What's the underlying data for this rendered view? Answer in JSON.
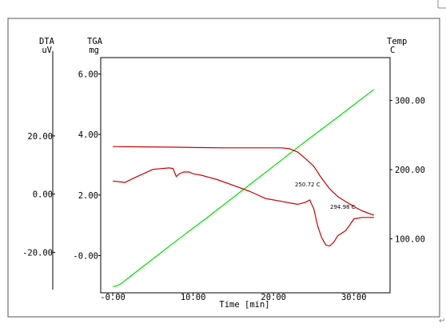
{
  "chart_data": {
    "type": "line",
    "x_axis": {
      "label": "Time [min]",
      "range": [
        -1.5,
        34.5
      ],
      "ticks": [
        {
          "value": 0,
          "label": "-0.00"
        },
        {
          "value": 10,
          "label": "10.00"
        },
        {
          "value": 20,
          "label": "20.00"
        },
        {
          "value": 30,
          "label": "30.00"
        }
      ]
    },
    "left_axes": {
      "dta": {
        "title": "DTA",
        "unit": "uV",
        "range": [
          -33.9,
          46.9
        ],
        "ticks": [
          {
            "value": 20,
            "label": "20.00"
          },
          {
            "value": 0,
            "label": "0.00"
          },
          {
            "value": -20,
            "label": "-20.00"
          }
        ]
      },
      "tga": {
        "title": "TGA",
        "unit": "mg",
        "range": [
          -1.23,
          6.54
        ],
        "ticks": [
          {
            "value": 6,
            "label": "6.00"
          },
          {
            "value": 4,
            "label": "4.00"
          },
          {
            "value": 2,
            "label": "2.00"
          },
          {
            "value": 0,
            "label": "-0.00"
          }
        ]
      }
    },
    "right_axis": {
      "title": "Temp",
      "unit": "C",
      "range": [
        22,
        362
      ],
      "ticks": [
        {
          "value": 300,
          "label": "300.00"
        },
        {
          "value": 200,
          "label": "200.00"
        },
        {
          "value": 100,
          "label": "100.00"
        }
      ]
    },
    "series": [
      {
        "axis": "temp",
        "color": "#00dd00",
        "x": [
          0,
          0.5,
          1,
          2,
          4,
          8,
          12,
          16,
          20,
          24,
          28,
          32.5
        ],
        "y": [
          31,
          32,
          35,
          44,
          62,
          98,
          133,
          169,
          205,
          241,
          276,
          316
        ]
      },
      {
        "axis": "tga",
        "color": "#cc0000",
        "x": [
          0,
          4,
          8,
          10,
          14,
          18,
          21,
          22,
          23,
          24,
          25,
          26,
          27,
          28,
          29,
          30,
          31,
          32.5
        ],
        "y": [
          3.6,
          3.59,
          3.58,
          3.57,
          3.56,
          3.56,
          3.56,
          3.53,
          3.42,
          3.2,
          2.95,
          2.55,
          2.2,
          1.95,
          1.78,
          1.62,
          1.48,
          1.33
        ]
      },
      {
        "axis": "dta",
        "color": "#cc0000",
        "x": [
          0,
          1,
          1.5,
          3,
          5,
          7,
          7.5,
          7.9,
          8.3,
          8.8,
          9.5,
          10,
          11,
          13,
          15,
          17,
          19,
          21,
          22,
          23,
          24,
          24.5,
          25,
          25.5,
          26,
          26.5,
          27,
          27.5,
          28,
          29,
          30,
          31,
          32.5
        ],
        "y": [
          4.5,
          4.2,
          4,
          6,
          8.5,
          9,
          8.8,
          6,
          7,
          7.6,
          7.6,
          7,
          6.5,
          5,
          3,
          1,
          -1.5,
          -2.5,
          -3,
          -3.5,
          -2.8,
          -2,
          -5,
          -11,
          -15,
          -17.5,
          -17.8,
          -16.5,
          -14.3,
          -12.5,
          -8.5,
          -8,
          -8
        ]
      }
    ],
    "annotations": [
      "250.72 C",
      "294.98 C"
    ]
  }
}
